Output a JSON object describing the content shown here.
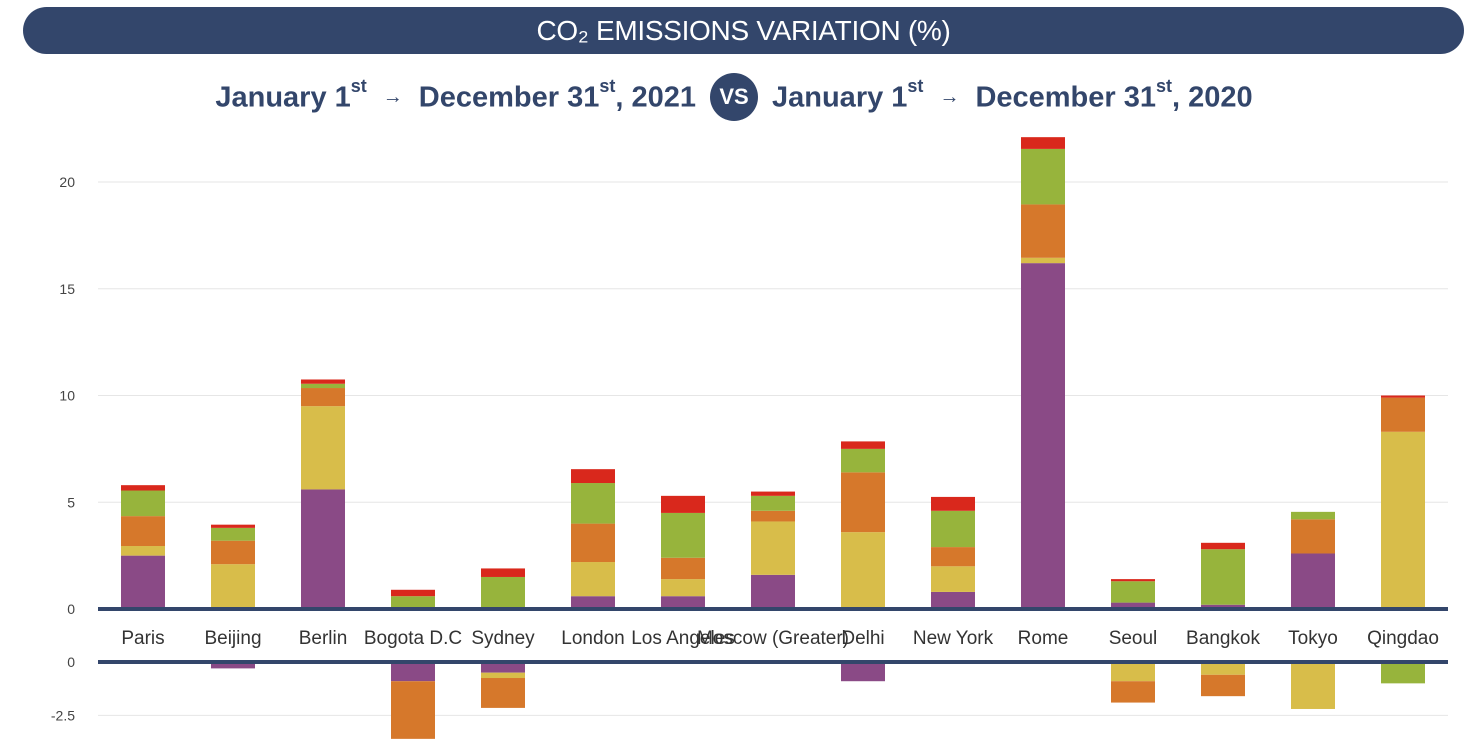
{
  "header": {
    "title": "CO₂ EMISSIONS VARIATION (%)",
    "period_a": {
      "start": "January 1",
      "start_sup": "st",
      "end": "December 31",
      "end_sup": "st",
      "year": ", 2021"
    },
    "vs": "VS",
    "period_b": {
      "start": "January 1",
      "start_sup": "st",
      "end": "December 31",
      "end_sup": "st",
      "year": ", 2020"
    },
    "arrow": "→"
  },
  "chart_data": {
    "type": "bar",
    "stacked": true,
    "categories": [
      "Paris",
      "Beijing",
      "Berlin",
      "Bogota D.C",
      "Sydney",
      "London",
      "Los Angeles",
      "Moscow (Greater)",
      "Delhi",
      "New York",
      "Rome",
      "Seoul",
      "Bangkok",
      "Tokyo",
      "Qingdao"
    ],
    "series": [
      {
        "color": "#8a4a86",
        "values": [
          2.5,
          -0.3,
          5.6,
          -0.9,
          -0.5,
          0.6,
          0.6,
          1.6,
          -0.9,
          0.8,
          16.2,
          0.3,
          0.2,
          2.6,
          0
        ]
      },
      {
        "color": "#d8bd4a",
        "values": [
          0.45,
          2.1,
          3.9,
          0,
          -0.25,
          1.6,
          0.8,
          2.5,
          3.6,
          1.2,
          0.25,
          -0.9,
          -0.6,
          -2.2,
          8.3
        ]
      },
      {
        "color": "#d6782b",
        "values": [
          1.4,
          1.1,
          0.85,
          -2.7,
          -1.4,
          1.8,
          1.0,
          0.5,
          2.8,
          0.9,
          2.5,
          -1.0,
          -1.0,
          1.6,
          1.6
        ]
      },
      {
        "color": "#97b43c",
        "values": [
          1.2,
          0.6,
          0.2,
          0.6,
          1.5,
          1.9,
          2.1,
          0.7,
          1.1,
          1.7,
          2.6,
          1.0,
          2.6,
          0.35,
          -1.0
        ]
      },
      {
        "color": "#d9281c",
        "values": [
          0.25,
          0.15,
          0.2,
          0.3,
          0.4,
          0.65,
          0.8,
          0.2,
          0.35,
          0.65,
          0.55,
          0.1,
          0.3,
          0,
          0.1
        ]
      }
    ],
    "ylim_positive": [
      0,
      22
    ],
    "ylim_negative": [
      -3,
      0
    ],
    "yticks_positive": [
      0,
      5,
      10,
      15,
      20
    ],
    "yticks_negative": [
      0,
      -2.5
    ],
    "grid": true
  }
}
